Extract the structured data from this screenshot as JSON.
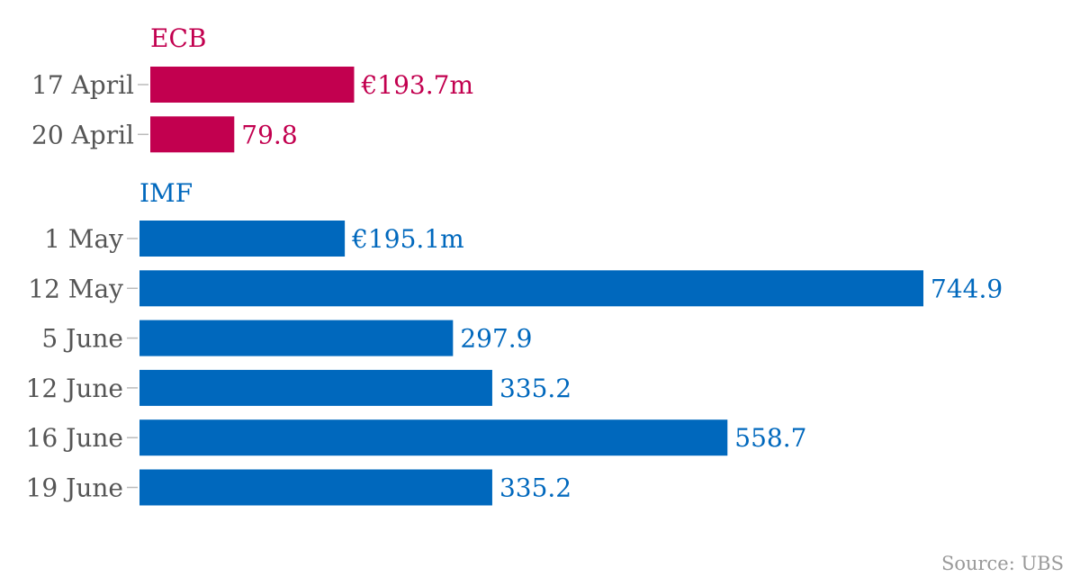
{
  "chart_data": [
    {
      "type": "bar",
      "orientation": "horizontal",
      "title": "ECB",
      "color": "#c2004f",
      "categories": [
        "17 April",
        "20 April"
      ],
      "values": [
        193.7,
        79.8
      ],
      "value_labels": [
        "€193.7m",
        "79.8"
      ],
      "unit": "€m",
      "xlim": [
        0,
        750
      ],
      "grid": false
    },
    {
      "type": "bar",
      "orientation": "horizontal",
      "title": "IMF",
      "color": "#0068bd",
      "categories": [
        "1 May",
        "12 May",
        "5 June",
        "12 June",
        "16 June",
        "19 June"
      ],
      "values": [
        195.1,
        744.9,
        297.9,
        335.2,
        558.7,
        335.2
      ],
      "value_labels": [
        "€195.1m",
        "744.9",
        "297.9",
        "335.2",
        "558.7",
        "335.2"
      ],
      "unit": "€m",
      "xlim": [
        0,
        750
      ],
      "grid": false
    }
  ],
  "source": "Source: UBS",
  "colors": {
    "label_text": "#555555",
    "tick": "#bbbbbb",
    "source_text": "#999999"
  }
}
